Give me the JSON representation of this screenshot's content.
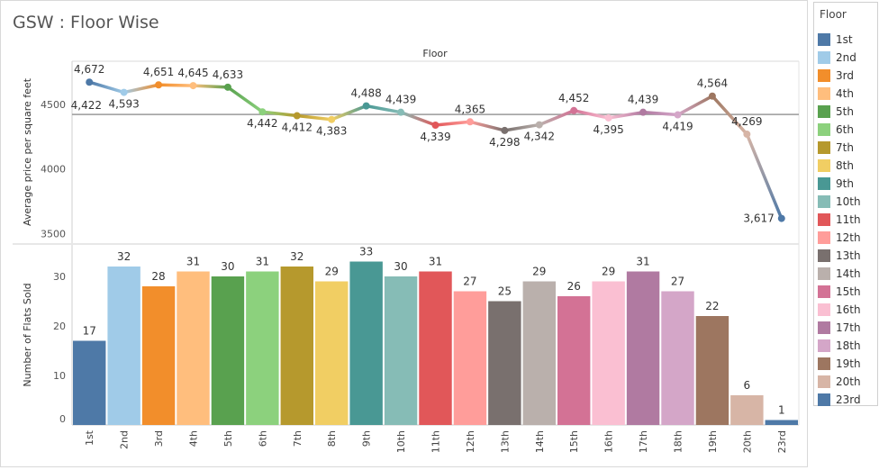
{
  "page": {
    "title": "GSW : Floor Wise"
  },
  "legend": {
    "title": "Floor"
  },
  "chart_data": {
    "type": "line+bar",
    "column_header": "Floor",
    "categories": [
      "1st",
      "2nd",
      "3rd",
      "4th",
      "5th",
      "6th",
      "7th",
      "8th",
      "9th",
      "10th",
      "11th",
      "12th",
      "13th",
      "14th",
      "15th",
      "16th",
      "17th",
      "18th",
      "19th",
      "20th",
      "23rd"
    ],
    "colors": [
      "#4e79a7",
      "#a0cbe8",
      "#f28e2b",
      "#ffbe7d",
      "#59a14f",
      "#8cd17d",
      "#b6992d",
      "#f1ce63",
      "#499894",
      "#86bcb6",
      "#e15759",
      "#ff9d9a",
      "#79706e",
      "#bab0ac",
      "#d37295",
      "#fabfd2",
      "#b07aa1",
      "#d4a6c8",
      "#9d7660",
      "#d7b5a6",
      "#4e79a7"
    ],
    "line": {
      "ylabel": "Average price per square feet",
      "yticks": [
        3500,
        4000,
        4500
      ],
      "ylim": [
        3440,
        4820
      ],
      "reference_line": 4422,
      "reference_label": "4,422",
      "values": [
        4672,
        4593,
        4651,
        4645,
        4633,
        4442,
        4412,
        4383,
        4488,
        4439,
        4339,
        4365,
        4298,
        4342,
        4452,
        4395,
        4439,
        4419,
        4564,
        4269,
        3617
      ],
      "labels": [
        "4,672",
        "4,593",
        "4,651",
        "4,645",
        "4,633",
        "4,442",
        "4,412",
        "4,383",
        "4,488",
        "4,439",
        "4,339",
        "4,365",
        "4,298",
        "4,342",
        "4,452",
        "4,395",
        "4,439",
        "4,419",
        "4,564",
        "4,269",
        "3,617"
      ],
      "label_pos": [
        "above",
        "below",
        "above",
        "above",
        "above",
        "below",
        "below",
        "below",
        "above",
        "above",
        "below",
        "above",
        "below",
        "below",
        "above",
        "below",
        "above",
        "below",
        "above",
        "above",
        "left"
      ]
    },
    "bar": {
      "ylabel": "Number of Flats Sold",
      "yticks": [
        0,
        10,
        20,
        30
      ],
      "ylim": [
        0,
        36
      ],
      "values": [
        17,
        32,
        28,
        31,
        30,
        31,
        32,
        29,
        33,
        30,
        31,
        27,
        25,
        29,
        26,
        29,
        31,
        27,
        22,
        6,
        1
      ],
      "labels": [
        "17",
        "32",
        "28",
        "31",
        "30",
        "31",
        "32",
        "29",
        "33",
        "30",
        "31",
        "27",
        "25",
        "29",
        "26",
        "29",
        "31",
        "27",
        "22",
        "6",
        "1"
      ]
    },
    "ytick_labels_line": [
      "3500",
      "4000",
      "4500"
    ],
    "ytick_labels_bar": [
      "0",
      "10",
      "20",
      "30"
    ]
  }
}
